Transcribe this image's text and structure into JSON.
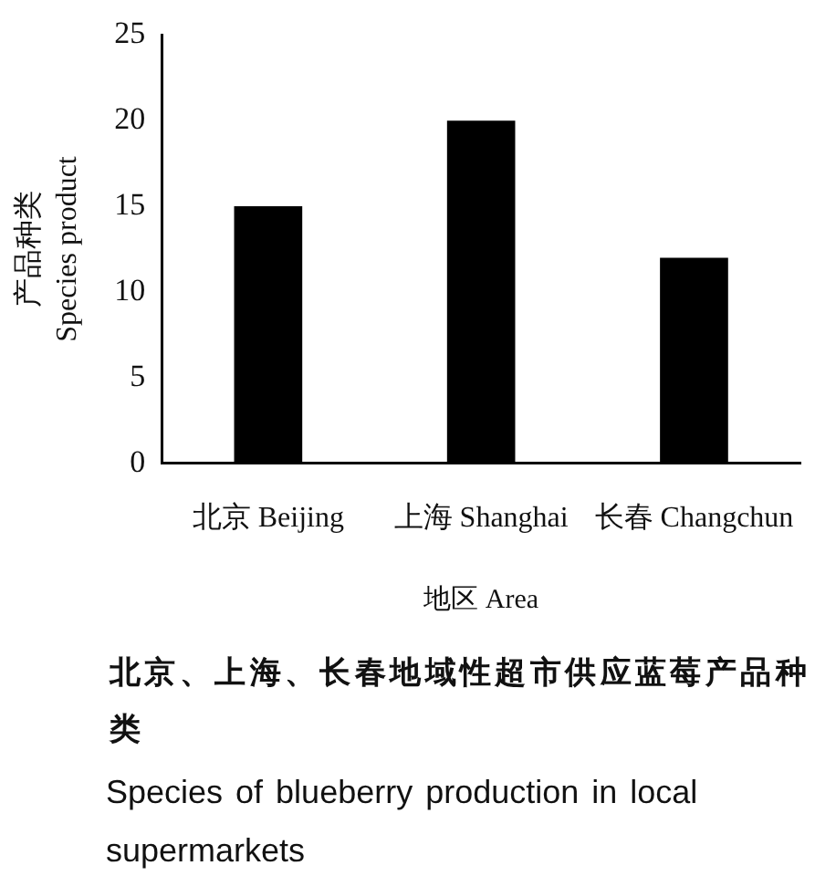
{
  "chart_data": {
    "type": "bar",
    "title": "北京、上海、长春地域性超市供应蓝莓产品种类",
    "subtitle": "Species of blueberry production in local supermarkets",
    "xlabel": "地区 Area",
    "ylabel": "产品种类\nSpecies product",
    "categories": [
      "北京 Beijing",
      "上海 Shanghai",
      "长春 Changchun"
    ],
    "values": [
      15,
      20,
      12
    ],
    "color": "#000000",
    "ylim": [
      0,
      25
    ],
    "yticks": [
      0,
      5,
      10,
      15,
      20,
      25
    ],
    "grid": false
  }
}
